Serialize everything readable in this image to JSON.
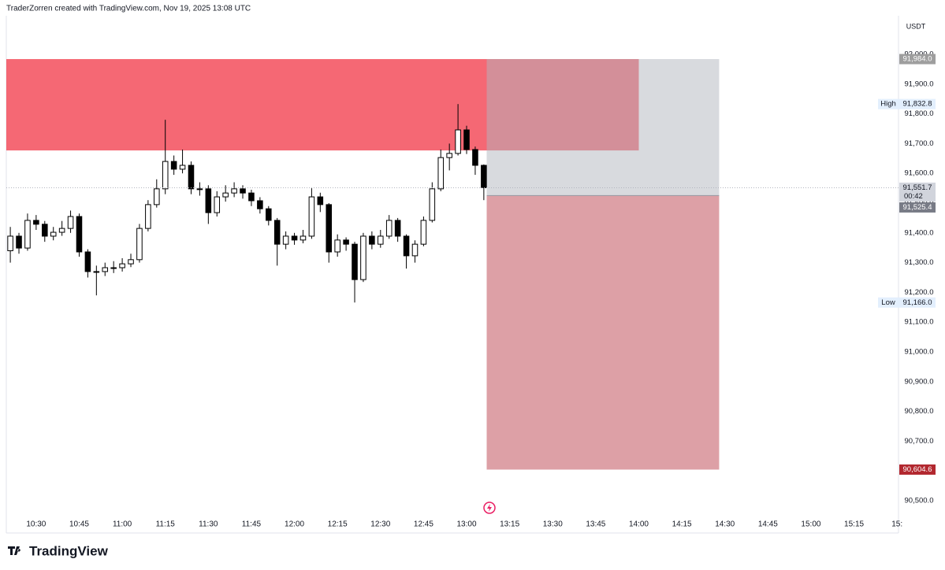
{
  "chart_data": {
    "type": "candlestick",
    "header": "TraderZorren created with TradingView.com, Nov 19, 2025 13:08 UTC",
    "currency": "USDT",
    "footer_logo": "TradingView",
    "up_color": "#ffffff",
    "down_color": "#000000",
    "xlim": [
      619.6,
      930.5
    ],
    "ylim": [
      90383.6,
      92129.6
    ],
    "xticks": [
      {
        "value": 630,
        "label": "10:30"
      },
      {
        "value": 645,
        "label": "10:45"
      },
      {
        "value": 660,
        "label": "11:00"
      },
      {
        "value": 675,
        "label": "11:15"
      },
      {
        "value": 690,
        "label": "11:30"
      },
      {
        "value": 705,
        "label": "11:45"
      },
      {
        "value": 720,
        "label": "12:00"
      },
      {
        "value": 735,
        "label": "12:15"
      },
      {
        "value": 750,
        "label": "12:30"
      },
      {
        "value": 765,
        "label": "12:45"
      },
      {
        "value": 780,
        "label": "13:00"
      },
      {
        "value": 795,
        "label": "13:15"
      },
      {
        "value": 810,
        "label": "13:30"
      },
      {
        "value": 825,
        "label": "13:45"
      },
      {
        "value": 840,
        "label": "14:00"
      },
      {
        "value": 855,
        "label": "14:15"
      },
      {
        "value": 870,
        "label": "14:30"
      },
      {
        "value": 885,
        "label": "14:45"
      },
      {
        "value": 900,
        "label": "15:00"
      },
      {
        "value": 915,
        "label": "15:15"
      },
      {
        "value": 930,
        "label": "15:"
      }
    ],
    "yticks": [
      {
        "value": 92000,
        "label": "92,000.0"
      },
      {
        "value": 91900,
        "label": "91,900.0"
      },
      {
        "value": 91800,
        "label": "91,800.0"
      },
      {
        "value": 91700,
        "label": "91,700.0"
      },
      {
        "value": 91600,
        "label": "91,600.0"
      },
      {
        "value": 91500,
        "label": "91,500.0"
      },
      {
        "value": 91400,
        "label": "91,400.0"
      },
      {
        "value": 91300,
        "label": "91,300.0"
      },
      {
        "value": 91200,
        "label": "91,200.0"
      },
      {
        "value": 91100,
        "label": "91,100.0"
      },
      {
        "value": 91000,
        "label": "91,000.0"
      },
      {
        "value": 90900,
        "label": "90,900.0"
      },
      {
        "value": 90800,
        "label": "90,800.0"
      },
      {
        "value": 90700,
        "label": "90,700.0"
      },
      {
        "value": 90600,
        "label": "90,600.0"
      },
      {
        "value": 90500,
        "label": "90,500.0"
      }
    ],
    "candles": {
      "x": [
        621,
        624,
        627,
        630,
        633,
        636,
        639,
        642,
        645,
        648,
        651,
        654,
        657,
        660,
        663,
        666,
        669,
        672,
        675,
        678,
        681,
        684,
        687,
        690,
        693,
        696,
        699,
        702,
        705,
        708,
        711,
        714,
        717,
        720,
        723,
        726,
        729,
        732,
        735,
        738,
        741,
        744,
        747,
        750,
        753,
        756,
        759,
        762,
        765,
        768,
        771,
        774,
        777,
        780,
        783,
        786
      ],
      "open": [
        91340,
        91389,
        91349,
        91442,
        91429,
        91389,
        91402,
        91415,
        91455,
        91336,
        91270,
        91270,
        91283,
        91283,
        91296,
        91310,
        91415,
        91495,
        91548,
        91640,
        91614,
        91627,
        91548,
        91548,
        91468,
        91521,
        91534,
        91548,
        91534,
        91508,
        91481,
        91442,
        91362,
        91389,
        91376,
        91389,
        91521,
        91495,
        91336,
        91376,
        91362,
        91243,
        91389,
        91362,
        91389,
        91442,
        91389,
        91323,
        91362,
        91442,
        91548,
        91653,
        91667,
        91746,
        91680,
        91627
      ],
      "high": [
        91420,
        91400,
        91465,
        91460,
        91440,
        91420,
        91440,
        91475,
        91465,
        91345,
        91290,
        91300,
        91305,
        91315,
        91330,
        91430,
        91510,
        91580,
        91780,
        91660,
        91680,
        91640,
        91570,
        91560,
        91540,
        91560,
        91570,
        91560,
        91545,
        91520,
        91490,
        91450,
        91405,
        91400,
        91410,
        91550,
        91535,
        91500,
        91395,
        91385,
        91370,
        91400,
        91405,
        91410,
        91460,
        91450,
        91395,
        91375,
        91455,
        91570,
        91680,
        91700,
        91832.8,
        91760,
        91690,
        91630
      ],
      "low": [
        91300,
        91330,
        91340,
        91410,
        91370,
        91375,
        91390,
        91400,
        91320,
        91250,
        91190,
        91255,
        91265,
        91270,
        91285,
        91300,
        91405,
        91485,
        91530,
        91595,
        91600,
        91530,
        91525,
        91430,
        91455,
        91505,
        91520,
        91515,
        91490,
        91465,
        91425,
        91290,
        91345,
        91360,
        91365,
        91380,
        91470,
        91300,
        91320,
        91340,
        91166,
        91235,
        91345,
        91350,
        91380,
        91370,
        91280,
        91300,
        91355,
        91435,
        91540,
        91610,
        91660,
        91665,
        91595,
        91510
      ],
      "close": [
        91389,
        91349,
        91442,
        91429,
        91389,
        91402,
        91415,
        91455,
        91336,
        91270,
        91270,
        91283,
        91283,
        91296,
        91310,
        91415,
        91495,
        91548,
        91640,
        91614,
        91627,
        91548,
        91548,
        91468,
        91521,
        91534,
        91548,
        91534,
        91508,
        91481,
        91442,
        91362,
        91389,
        91376,
        91389,
        91521,
        91495,
        91336,
        91376,
        91362,
        91243,
        91389,
        91362,
        91389,
        91442,
        91389,
        91323,
        91362,
        91442,
        91548,
        91653,
        91667,
        91746,
        91680,
        91627,
        91551.7
      ]
    },
    "zones": [
      {
        "x": [
          600,
          840
        ],
        "y": [
          91677,
          91984
        ],
        "color": "#f23645"
      }
    ],
    "position": {
      "x": [
        787,
        868
      ],
      "entry": 91525.4,
      "stop": 91984.0,
      "target": 90604.6,
      "stop_color": "#b2b5be",
      "target_color": "#bb414d"
    },
    "price_tags": [
      {
        "value": 91984.0,
        "label": "91,984.0",
        "color": "#9e9e9e"
      },
      {
        "value": 91832.8,
        "label": "91,832.8",
        "title": "High",
        "color": "#e3effd"
      },
      {
        "value": 91551.7,
        "label": "91,551.7",
        "countdown": "00:42",
        "color": "#d1d4dc"
      },
      {
        "value": 91525.4,
        "label": "91,525.4",
        "color": "#787b86"
      },
      {
        "value": 91166.0,
        "label": "91,166.0",
        "title": "Low",
        "color": "#e3effd"
      },
      {
        "value": 90604.6,
        "label": "90,604.6",
        "color": "#b2282f"
      }
    ]
  }
}
